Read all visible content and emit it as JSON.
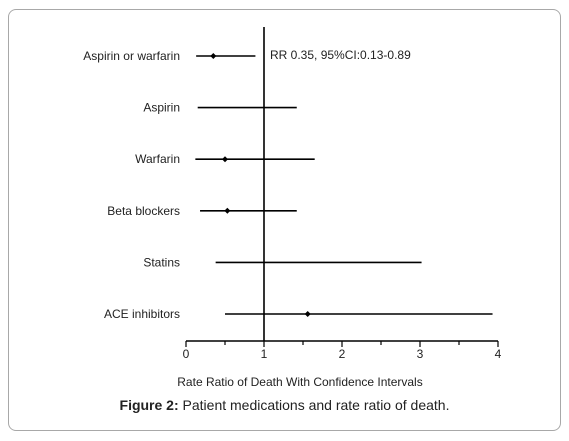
{
  "chart_data": {
    "type": "forest",
    "xlabel": "Rate Ratio of Death With Confidence Intervals",
    "xlim": [
      0,
      4
    ],
    "xticks": [
      0,
      1,
      2,
      3,
      4
    ],
    "reference_line_x": 1,
    "rows": [
      {
        "label": "Aspirin or warfarin",
        "point": 0.35,
        "lower": 0.13,
        "upper": 0.89
      },
      {
        "label": "Aspirin",
        "point": null,
        "lower": 0.15,
        "upper": 1.42
      },
      {
        "label": "Warfarin",
        "point": 0.5,
        "lower": 0.12,
        "upper": 1.65
      },
      {
        "label": "Beta blockers",
        "point": 0.53,
        "lower": 0.18,
        "upper": 1.42
      },
      {
        "label": "Statins",
        "point": null,
        "lower": 0.38,
        "upper": 3.02
      },
      {
        "label": "ACE inhibitors",
        "point": 1.56,
        "lower": 0.5,
        "upper": 3.93
      }
    ],
    "annotation": "RR 0.35, 95%CI:0.13-0.89",
    "colors": {
      "line": "#000000",
      "text": "#222222"
    }
  },
  "caption": {
    "prefix": "Figure 2:",
    "text": " Patient medications and rate ratio of death."
  }
}
